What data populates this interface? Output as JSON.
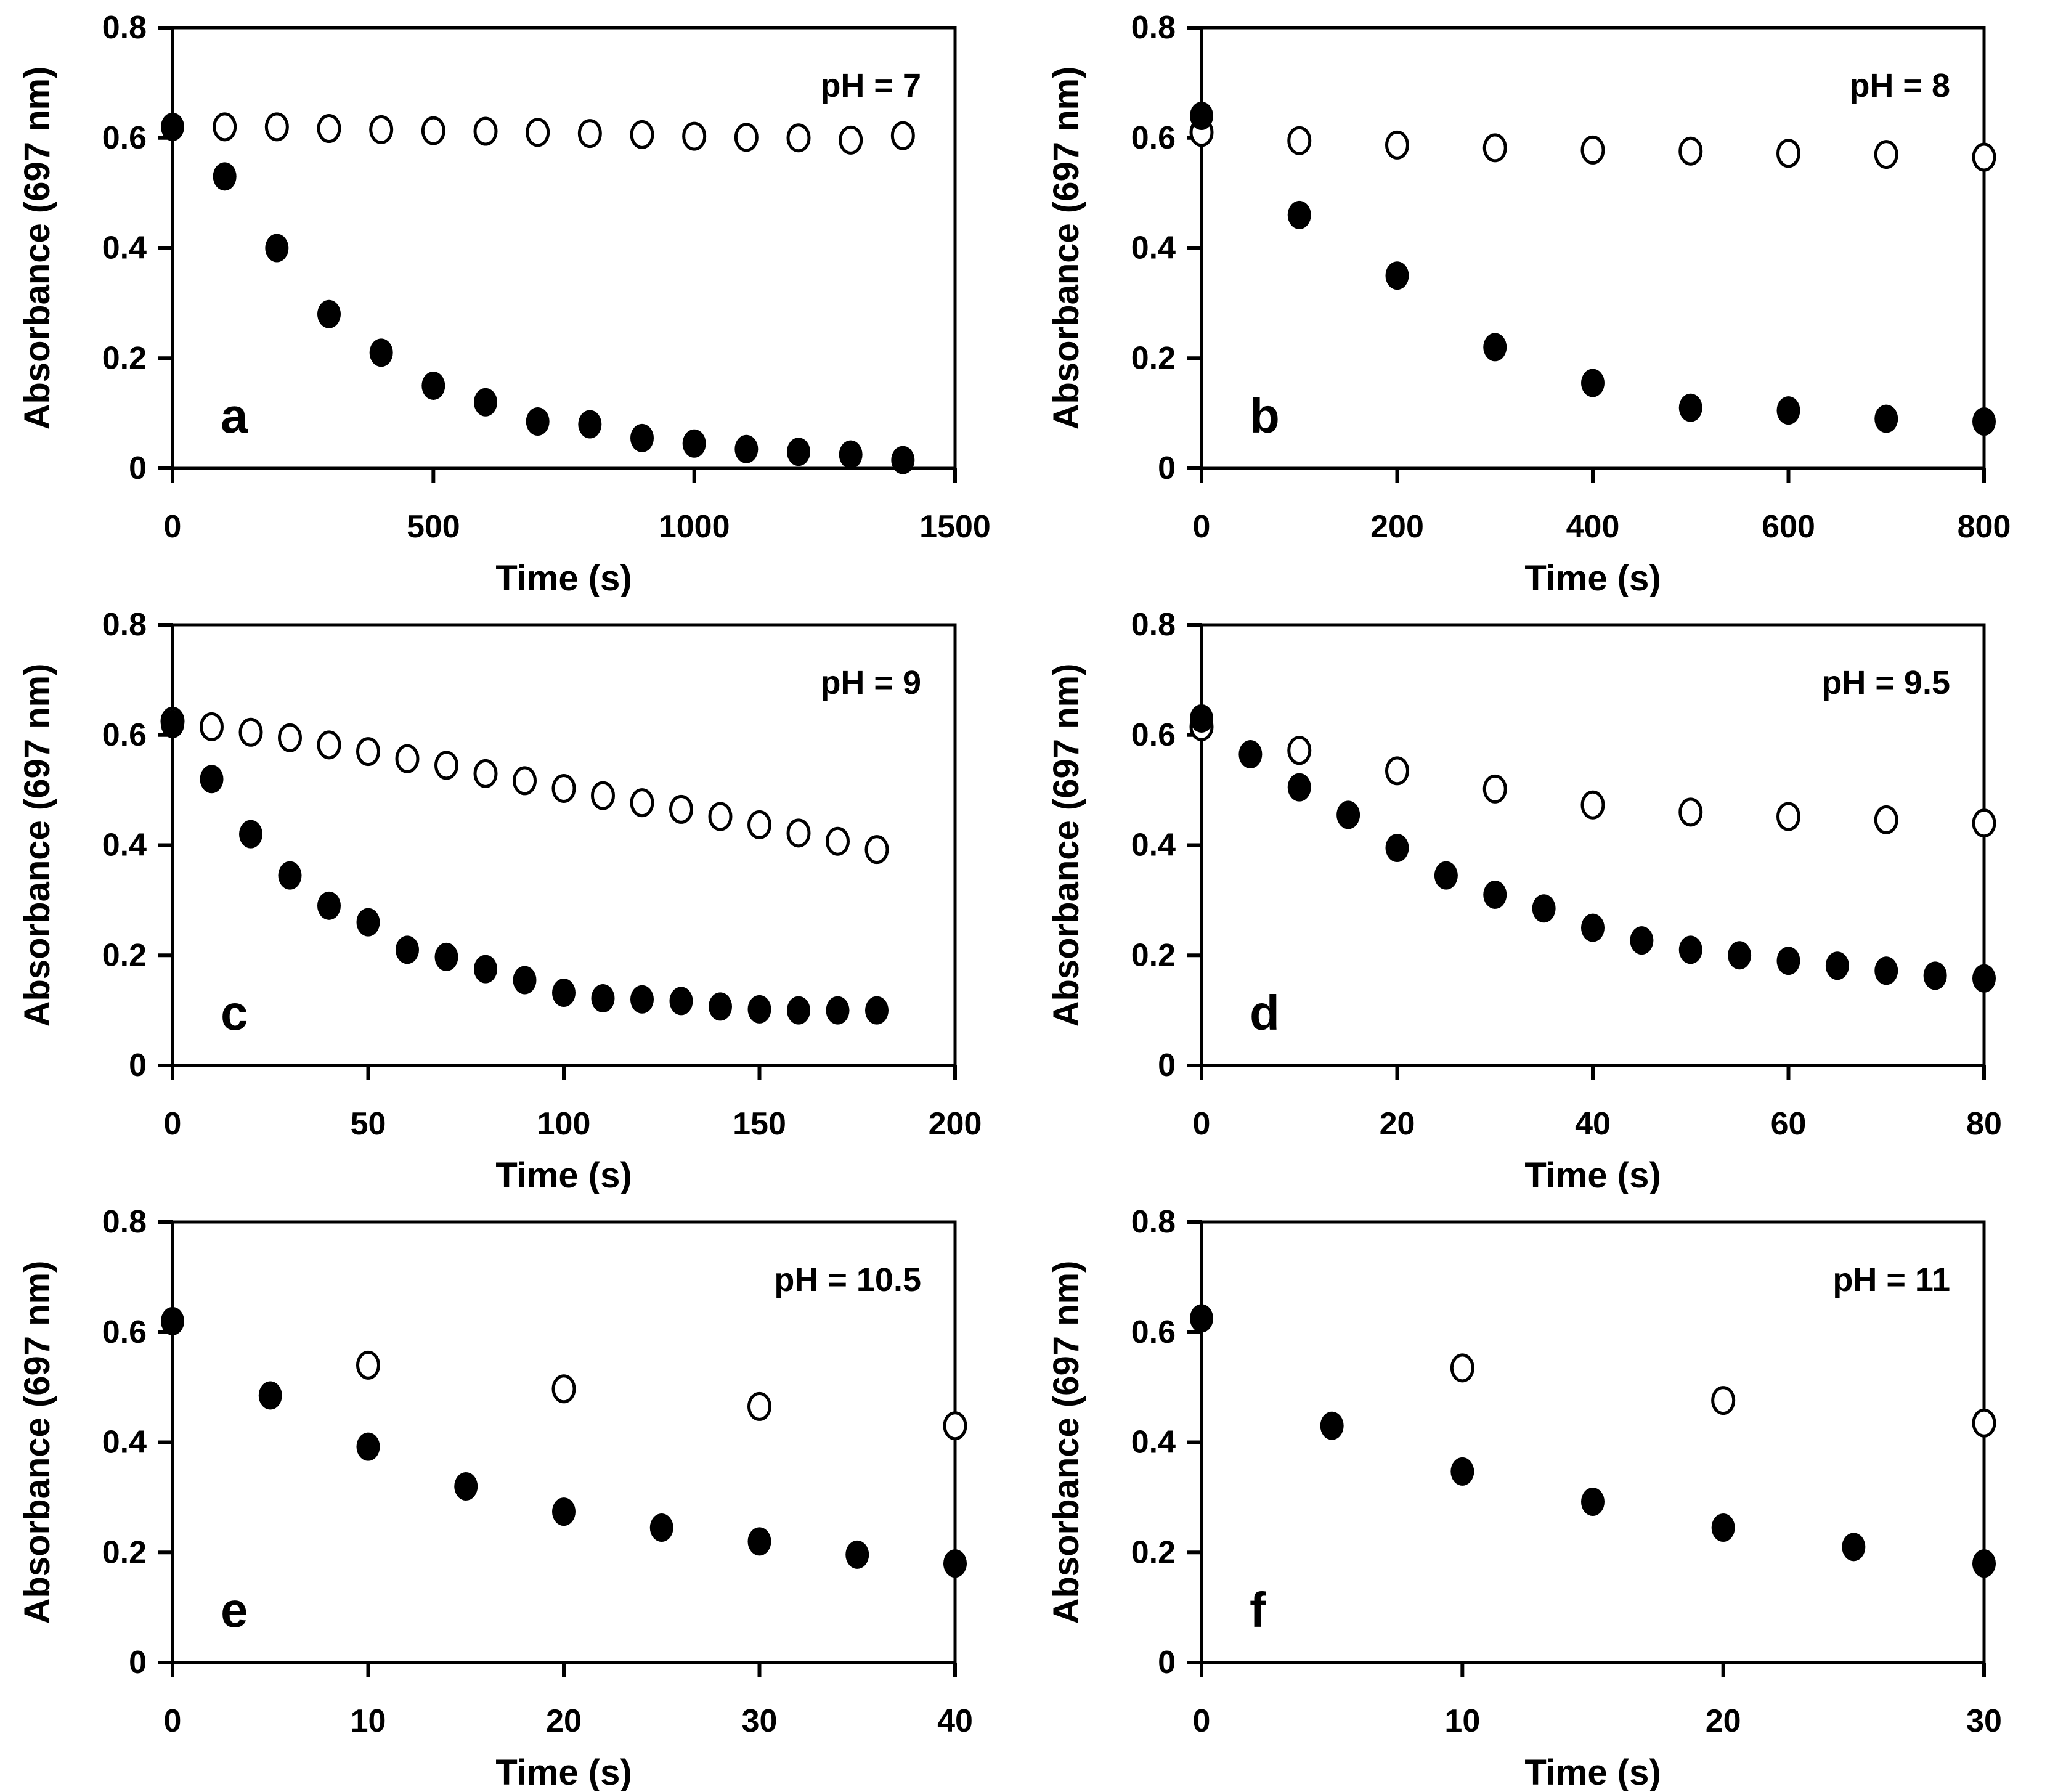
{
  "figure": {
    "background": "#ffffff",
    "ink_color": "#000000",
    "marker_open_fill": "#ffffff",
    "marker_filled_fill": "#000000",
    "ylabel": "Absorbance (697 nm)",
    "xlabel": "Time (s)"
  },
  "chart_data": [
    {
      "type": "scatter",
      "panel_label": "a",
      "annotation": "pH = 7",
      "xlabel": "Time (s)",
      "ylabel": "Absorbance (697 nm)",
      "xlim": [
        0,
        1500
      ],
      "ylim": [
        0,
        0.8
      ],
      "xticks": [
        0,
        500,
        1000,
        1500
      ],
      "yticks": [
        0,
        0.2,
        0.4,
        0.6,
        0.8
      ],
      "xtick_labels": [
        "0",
        "500",
        "1000",
        "1500"
      ],
      "ytick_labels": [
        "0",
        "0.2",
        "0.4",
        "0.6",
        "0.8"
      ],
      "grid": false,
      "legend": "none",
      "series": [
        {
          "name": "open-circle-series",
          "marker": "open-circle",
          "x": [
            100,
            200,
            300,
            400,
            500,
            600,
            700,
            800,
            900,
            1000,
            1100,
            1200,
            1300,
            1400
          ],
          "y": [
            0.62,
            0.62,
            0.617,
            0.615,
            0.613,
            0.612,
            0.61,
            0.608,
            0.606,
            0.603,
            0.601,
            0.6,
            0.596,
            0.604
          ]
        },
        {
          "name": "filled-circle-series",
          "marker": "filled-circle",
          "x": [
            0,
            100,
            200,
            300,
            400,
            500,
            600,
            700,
            800,
            900,
            1000,
            1100,
            1200,
            1300,
            1400
          ],
          "y": [
            0.62,
            0.53,
            0.4,
            0.28,
            0.21,
            0.15,
            0.12,
            0.085,
            0.08,
            0.055,
            0.045,
            0.035,
            0.03,
            0.025,
            0.015
          ]
        }
      ]
    },
    {
      "type": "scatter",
      "panel_label": "b",
      "annotation": "pH = 8",
      "xlabel": "Time (s)",
      "ylabel": "Absorbance (697 nm)",
      "xlim": [
        0,
        800
      ],
      "ylim": [
        0,
        0.8
      ],
      "xticks": [
        0,
        200,
        400,
        600,
        800
      ],
      "yticks": [
        0,
        0.2,
        0.4,
        0.6,
        0.8
      ],
      "xtick_labels": [
        "0",
        "200",
        "400",
        "600",
        "800"
      ],
      "ytick_labels": [
        "0",
        "0.2",
        "0.4",
        "0.6",
        "0.8"
      ],
      "grid": false,
      "legend": "none",
      "series": [
        {
          "name": "open-circle-series",
          "marker": "open-circle",
          "x": [
            0,
            100,
            200,
            300,
            400,
            500,
            600,
            700,
            800
          ],
          "y": [
            0.61,
            0.595,
            0.587,
            0.582,
            0.578,
            0.576,
            0.572,
            0.57,
            0.565
          ]
        },
        {
          "name": "filled-circle-series",
          "marker": "filled-circle",
          "x": [
            0,
            100,
            200,
            300,
            400,
            500,
            600,
            700,
            800
          ],
          "y": [
            0.64,
            0.46,
            0.35,
            0.22,
            0.155,
            0.11,
            0.105,
            0.09,
            0.085
          ]
        }
      ]
    },
    {
      "type": "scatter",
      "panel_label": "c",
      "annotation": "pH = 9",
      "xlabel": "Time (s)",
      "ylabel": "Absorbance (697 nm)",
      "xlim": [
        0,
        200
      ],
      "ylim": [
        0,
        0.8
      ],
      "xticks": [
        0,
        50,
        100,
        150,
        200
      ],
      "yticks": [
        0,
        0.2,
        0.4,
        0.6,
        0.8
      ],
      "xtick_labels": [
        "0",
        "50",
        "100",
        "150",
        "200"
      ],
      "ytick_labels": [
        "0",
        "0.2",
        "0.4",
        "0.6",
        "0.8"
      ],
      "grid": false,
      "legend": "none",
      "series": [
        {
          "name": "open-circle-series",
          "marker": "open-circle",
          "x": [
            0,
            10,
            20,
            30,
            40,
            50,
            60,
            70,
            80,
            90,
            100,
            110,
            120,
            130,
            140,
            150,
            160,
            170,
            180
          ],
          "y": [
            0.625,
            0.615,
            0.605,
            0.595,
            0.582,
            0.57,
            0.557,
            0.545,
            0.53,
            0.517,
            0.503,
            0.49,
            0.477,
            0.465,
            0.452,
            0.437,
            0.422,
            0.407,
            0.392
          ]
        },
        {
          "name": "filled-circle-series",
          "marker": "filled-circle",
          "x": [
            0,
            10,
            20,
            30,
            40,
            50,
            60,
            70,
            80,
            90,
            100,
            110,
            120,
            130,
            140,
            150,
            160,
            170,
            180
          ],
          "y": [
            0.62,
            0.52,
            0.42,
            0.345,
            0.29,
            0.26,
            0.21,
            0.197,
            0.175,
            0.155,
            0.132,
            0.122,
            0.12,
            0.117,
            0.107,
            0.102,
            0.1,
            0.1,
            0.1
          ]
        }
      ]
    },
    {
      "type": "scatter",
      "panel_label": "d",
      "annotation": "pH = 9.5",
      "xlabel": "Time (s)",
      "ylabel": "Absorbance (697 nm)",
      "xlim": [
        0,
        80
      ],
      "ylim": [
        0,
        0.8
      ],
      "xticks": [
        0,
        20,
        40,
        60,
        80
      ],
      "yticks": [
        0,
        0.2,
        0.4,
        0.6,
        0.8
      ],
      "xtick_labels": [
        "0",
        "20",
        "40",
        "60",
        "80"
      ],
      "ytick_labels": [
        "0",
        "0.2",
        "0.4",
        "0.6",
        "0.8"
      ],
      "grid": false,
      "legend": "none",
      "series": [
        {
          "name": "open-circle-series",
          "marker": "open-circle",
          "x": [
            0,
            10,
            20,
            30,
            40,
            50,
            60,
            70,
            80
          ],
          "y": [
            0.615,
            0.572,
            0.535,
            0.502,
            0.473,
            0.46,
            0.452,
            0.446,
            0.44
          ]
        },
        {
          "name": "filled-circle-series",
          "marker": "filled-circle",
          "x": [
            0,
            5,
            10,
            15,
            20,
            25,
            30,
            35,
            40,
            45,
            50,
            55,
            60,
            65,
            70,
            75,
            80
          ],
          "y": [
            0.63,
            0.565,
            0.505,
            0.455,
            0.395,
            0.345,
            0.31,
            0.285,
            0.25,
            0.227,
            0.21,
            0.2,
            0.19,
            0.181,
            0.172,
            0.163,
            0.158
          ]
        }
      ]
    },
    {
      "type": "scatter",
      "panel_label": "e",
      "annotation": "pH = 10.5",
      "xlabel": "Time (s)",
      "ylabel": "Absorbance (697 nm)",
      "xlim": [
        0,
        40
      ],
      "ylim": [
        0,
        0.8
      ],
      "xticks": [
        0,
        10,
        20,
        30,
        40
      ],
      "yticks": [
        0,
        0.2,
        0.4,
        0.6,
        0.8
      ],
      "xtick_labels": [
        "0",
        "10",
        "20",
        "30",
        "40"
      ],
      "ytick_labels": [
        "0",
        "0.2",
        "0.4",
        "0.6",
        "0.8"
      ],
      "grid": false,
      "legend": "none",
      "series": [
        {
          "name": "open-circle-series",
          "marker": "open-circle",
          "x": [
            10,
            20,
            30,
            40
          ],
          "y": [
            0.54,
            0.497,
            0.465,
            0.43
          ]
        },
        {
          "name": "filled-circle-series",
          "marker": "filled-circle",
          "x": [
            0,
            5,
            10,
            15,
            20,
            25,
            30,
            35,
            40
          ],
          "y": [
            0.62,
            0.485,
            0.392,
            0.32,
            0.274,
            0.245,
            0.22,
            0.196,
            0.18
          ]
        }
      ]
    },
    {
      "type": "scatter",
      "panel_label": "f",
      "annotation": "pH = 11",
      "xlabel": "Time (s)",
      "ylabel": "Absorbance (697 nm)",
      "xlim": [
        0,
        30
      ],
      "ylim": [
        0,
        0.8
      ],
      "xticks": [
        0,
        10,
        20,
        30
      ],
      "yticks": [
        0,
        0.2,
        0.4,
        0.6,
        0.8
      ],
      "xtick_labels": [
        "0",
        "10",
        "20",
        "30"
      ],
      "ytick_labels": [
        "0",
        "0.2",
        "0.4",
        "0.6",
        "0.8"
      ],
      "grid": false,
      "legend": "none",
      "series": [
        {
          "name": "open-circle-series",
          "marker": "open-circle",
          "x": [
            10,
            20,
            30
          ],
          "y": [
            0.535,
            0.476,
            0.435
          ]
        },
        {
          "name": "filled-circle-series",
          "marker": "filled-circle",
          "x": [
            0,
            5,
            10,
            15,
            20,
            25,
            30
          ],
          "y": [
            0.625,
            0.43,
            0.347,
            0.292,
            0.245,
            0.21,
            0.18
          ]
        }
      ]
    }
  ]
}
